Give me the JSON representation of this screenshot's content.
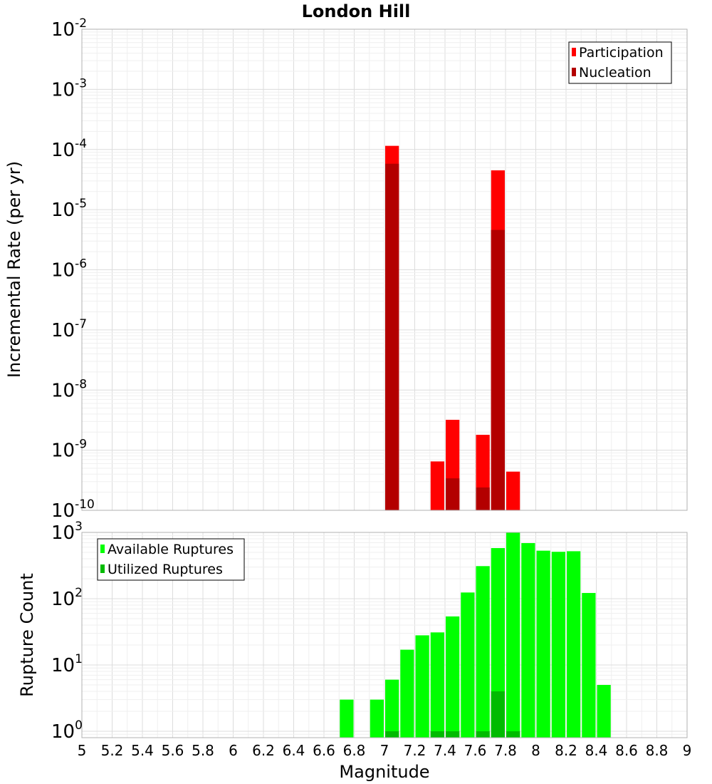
{
  "title": "London Hill",
  "colors": {
    "participation": "#ff0000",
    "nucleation": "#b30000",
    "available": "#00ff00",
    "utilized": "#00bb00"
  },
  "chart_data": [
    {
      "type": "bar",
      "ylabel": "Incremental Rate (per yr)",
      "yscale": "log",
      "ylim": [
        1e-10,
        0.01
      ],
      "xlim": [
        5,
        9
      ],
      "ytick_exponents": [
        -10,
        -9,
        -8,
        -7,
        -6,
        -5,
        -4,
        -3,
        -2
      ],
      "legend": {
        "placement": "top-right",
        "entries": [
          "Participation",
          "Nucleation"
        ]
      },
      "series": [
        {
          "name": "Participation",
          "x": [
            7.05,
            7.35,
            7.45,
            7.65,
            7.75,
            7.85
          ],
          "values": [
            0.000115,
            6.5e-10,
            3.2e-09,
            1.8e-09,
            4.5e-05,
            4.4e-10
          ]
        },
        {
          "name": "Nucleation",
          "x": [
            7.05,
            7.45,
            7.65,
            7.75
          ],
          "values": [
            5.8e-05,
            3.4e-10,
            2.4e-10,
            4.6e-06
          ]
        }
      ]
    },
    {
      "type": "bar",
      "xlabel": "Magnitude",
      "ylabel": "Rupture Count",
      "yscale": "log",
      "ylim": [
        0.8,
        1000
      ],
      "xlim": [
        5,
        9
      ],
      "ytick_exponents": [
        0,
        1,
        2,
        3
      ],
      "xticks": [
        "5",
        "5.2",
        "5.4",
        "5.6",
        "5.8",
        "6",
        "6.2",
        "6.4",
        "6.6",
        "6.8",
        "7",
        "7.2",
        "7.4",
        "7.6",
        "7.8",
        "8",
        "8.2",
        "8.4",
        "8.6",
        "8.8",
        "9"
      ],
      "legend": {
        "placement": "top-left",
        "entries": [
          "Available Ruptures",
          "Utilized Ruptures"
        ]
      },
      "series": [
        {
          "name": "Available Ruptures",
          "x": [
            6.75,
            6.95,
            7.05,
            7.15,
            7.25,
            7.35,
            7.45,
            7.55,
            7.65,
            7.75,
            7.85,
            7.95,
            8.05,
            8.15,
            8.25,
            8.35,
            8.45
          ],
          "values": [
            3,
            3,
            6,
            17,
            28,
            31,
            54,
            124,
            310,
            580,
            1000,
            690,
            530,
            510,
            520,
            122,
            5
          ]
        },
        {
          "name": "Utilized Ruptures",
          "x": [
            7.05,
            7.35,
            7.45,
            7.65,
            7.75,
            7.85
          ],
          "values": [
            1,
            1,
            1,
            1,
            4,
            1
          ]
        }
      ]
    }
  ]
}
